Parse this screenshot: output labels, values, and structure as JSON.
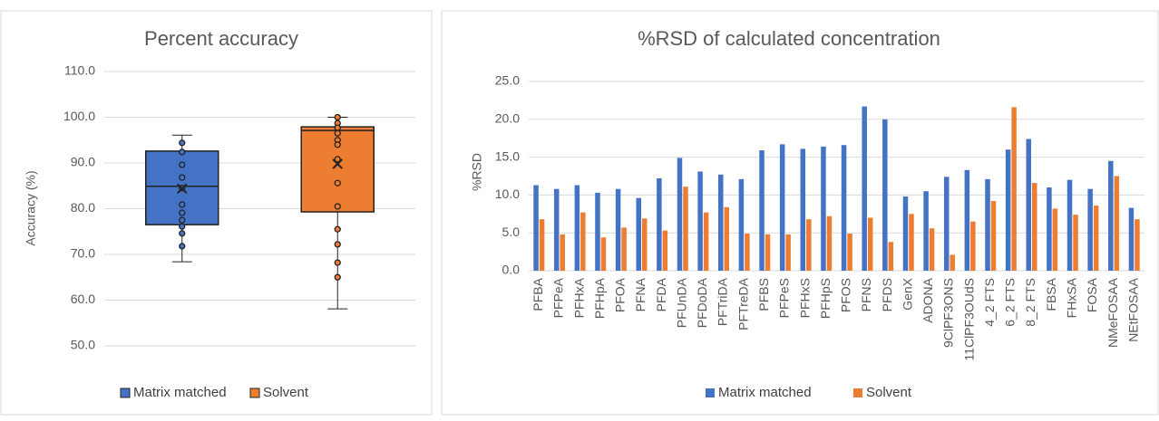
{
  "chart_data": [
    {
      "type": "box",
      "title": "Percent accuracy",
      "ylabel": "Accuracy (%)",
      "ylim": [
        50,
        110
      ],
      "yticks": [
        {
          "value": 50,
          "label": "50.0"
        },
        {
          "value": 60,
          "label": "60.0"
        },
        {
          "value": 70,
          "label": "70.0"
        },
        {
          "value": 80,
          "label": "80.0"
        },
        {
          "value": 90,
          "label": "90.0"
        },
        {
          "value": 100,
          "label": "100.0"
        },
        {
          "value": 110,
          "label": "110.0"
        }
      ],
      "grid": true,
      "legend": "bottom",
      "series": [
        {
          "name": "Matrix matched",
          "color": "#4472c4",
          "min": 68.4,
          "q1": 76.5,
          "median": 84.9,
          "q3": 92.6,
          "max": 96.1,
          "mean": 84.4,
          "points": [
            94.4,
            92.4,
            89.6,
            86.8,
            84.5,
            80.9,
            79.1,
            77.5,
            76.1,
            74.6,
            71.8
          ]
        },
        {
          "name": "Solvent",
          "color": "#ed7d31",
          "min": 58.1,
          "q1": 79.3,
          "median": 97.1,
          "q3": 97.9,
          "max": 100,
          "mean": 89.8,
          "points": [
            100,
            98.7,
            97.7,
            96.5,
            95,
            94,
            90.8,
            85.6,
            80.5,
            75.5,
            72.2,
            68.2,
            65
          ]
        }
      ]
    },
    {
      "type": "bar",
      "title": "%RSD of calculated concentration",
      "ylabel": "%RSD",
      "ylim": [
        0,
        25
      ],
      "yticks": [
        {
          "value": 0,
          "label": "0.0"
        },
        {
          "value": 5,
          "label": "5.0"
        },
        {
          "value": 10,
          "label": "10.0"
        },
        {
          "value": 15,
          "label": "15.0"
        },
        {
          "value": 20,
          "label": "20.0"
        },
        {
          "value": 25,
          "label": "25.0"
        }
      ],
      "grid": true,
      "legend": "bottom",
      "categories": [
        "PFBA",
        "PFPeA",
        "PFHxA",
        "PFHpA",
        "PFOA",
        "PFNA",
        "PFDA",
        "PFUnDA",
        "PFDoDA",
        "PFTriDA",
        "PFTreDA",
        "PFBS",
        "PFPeS",
        "PFHxS",
        "PFHpS",
        "PFOS",
        "PFNS",
        "PFDS",
        "GenX",
        "ADONA",
        "9ClPF3ONS",
        "11ClPF3OUdS",
        "4_2 FTS",
        "6_2 FTS",
        "8_2 FTS",
        "FBSA",
        "FHxSA",
        "FOSA",
        "NMeFOSAA",
        "NEtFOSAA"
      ],
      "series": [
        {
          "name": "Matrix matched",
          "color": "#4472c4",
          "values": [
            11.3,
            10.8,
            11.3,
            10.3,
            10.8,
            9.6,
            12.2,
            14.9,
            13.1,
            12.7,
            12.1,
            15.9,
            16.7,
            16.1,
            16.4,
            16.6,
            21.7,
            20.0,
            9.8,
            10.5,
            12.4,
            13.3,
            12.1,
            16.0,
            17.4,
            11.0,
            12.0,
            10.8,
            14.5,
            8.3
          ]
        },
        {
          "name": "Solvent",
          "color": "#ed7d31",
          "values": [
            6.8,
            4.8,
            7.7,
            4.4,
            5.7,
            6.9,
            5.3,
            11.1,
            7.7,
            8.4,
            4.9,
            4.8,
            4.8,
            6.8,
            7.2,
            4.9,
            7.0,
            3.8,
            7.5,
            5.6,
            2.1,
            6.5,
            9.2,
            21.6,
            11.6,
            8.2,
            7.4,
            8.6,
            12.5,
            6.8
          ]
        }
      ]
    }
  ]
}
